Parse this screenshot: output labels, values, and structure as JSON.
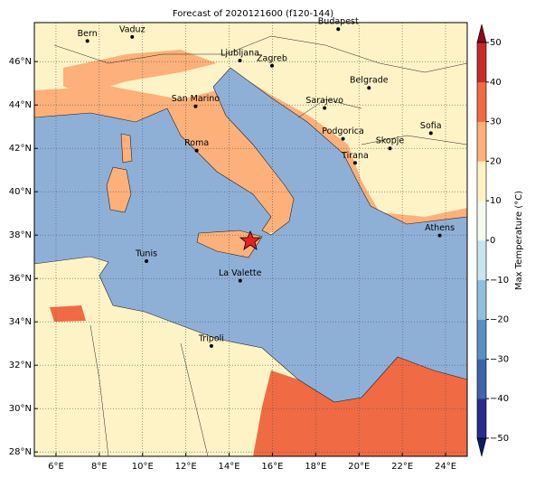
{
  "title": "Forecast of 2020121600 (f120-144)",
  "map": {
    "lonlim": [
      5,
      25
    ],
    "latlim": [
      27.8,
      47.8
    ],
    "xticks": [
      {
        "value": 6,
        "label": "6°E"
      },
      {
        "value": 8,
        "label": "8°E"
      },
      {
        "value": 10,
        "label": "10°E"
      },
      {
        "value": 12,
        "label": "12°E"
      },
      {
        "value": 14,
        "label": "14°E"
      },
      {
        "value": 16,
        "label": "16°E"
      },
      {
        "value": 18,
        "label": "18°E"
      },
      {
        "value": 20,
        "label": "20°E"
      },
      {
        "value": 22,
        "label": "22°E"
      },
      {
        "value": 24,
        "label": "24°E"
      }
    ],
    "yticks": [
      {
        "value": 28,
        "label": "28°N"
      },
      {
        "value": 30,
        "label": "30°N"
      },
      {
        "value": 32,
        "label": "32°N"
      },
      {
        "value": 34,
        "label": "34°N"
      },
      {
        "value": 36,
        "label": "36°N"
      },
      {
        "value": 38,
        "label": "38°N"
      },
      {
        "value": 40,
        "label": "40°N"
      },
      {
        "value": 42,
        "label": "42°N"
      },
      {
        "value": 44,
        "label": "44°N"
      },
      {
        "value": 46,
        "label": "46°N"
      }
    ],
    "grid": true,
    "cities": [
      {
        "name": "Bern",
        "lon": 7.45,
        "lat": 46.95
      },
      {
        "name": "Vaduz",
        "lon": 9.52,
        "lat": 47.14
      },
      {
        "name": "Budapest",
        "lon": 19.04,
        "lat": 47.5
      },
      {
        "name": "Ljubljana",
        "lon": 14.5,
        "lat": 46.05
      },
      {
        "name": "Zagreb",
        "lon": 15.98,
        "lat": 45.81
      },
      {
        "name": "Belgrade",
        "lon": 20.46,
        "lat": 44.79
      },
      {
        "name": "San Marino",
        "lon": 12.45,
        "lat": 43.94
      },
      {
        "name": "Sarajevo",
        "lon": 18.41,
        "lat": 43.86
      },
      {
        "name": "Sofia",
        "lon": 23.32,
        "lat": 42.7
      },
      {
        "name": "Podgorica",
        "lon": 19.26,
        "lat": 42.44
      },
      {
        "name": "Skopje",
        "lon": 21.43,
        "lat": 42.0
      },
      {
        "name": "Roma",
        "lon": 12.5,
        "lat": 41.9
      },
      {
        "name": "Tirana",
        "lon": 19.82,
        "lat": 41.33
      },
      {
        "name": "Athens",
        "lon": 23.73,
        "lat": 37.98
      },
      {
        "name": "Tunis",
        "lon": 10.18,
        "lat": 36.8
      },
      {
        "name": "La Valette",
        "lon": 14.51,
        "lat": 35.9
      },
      {
        "name": "Tripoli",
        "lon": 13.18,
        "lat": 32.89
      }
    ]
  },
  "colorbar": {
    "label": "Max Temperature (°C)",
    "lim": [
      -50,
      50
    ],
    "ticks": [
      {
        "value": -50,
        "label": "−50"
      },
      {
        "value": -40,
        "label": "−40"
      },
      {
        "value": -30,
        "label": "−30"
      },
      {
        "value": -20,
        "label": "−20"
      },
      {
        "value": -10,
        "label": "−10"
      },
      0,
      10,
      20,
      30,
      40,
      50
    ],
    "colors": [
      "#2a2c8d",
      "#3c64ab",
      "#5b8fc2",
      "#93bedb",
      "#c9e4ef",
      "#f4faf0",
      "#fdf3c6",
      "#fdb07a",
      "#f06a43",
      "#c82a2a"
    ],
    "under": "#0f1a60",
    "over": "#8a0a1e"
  }
}
